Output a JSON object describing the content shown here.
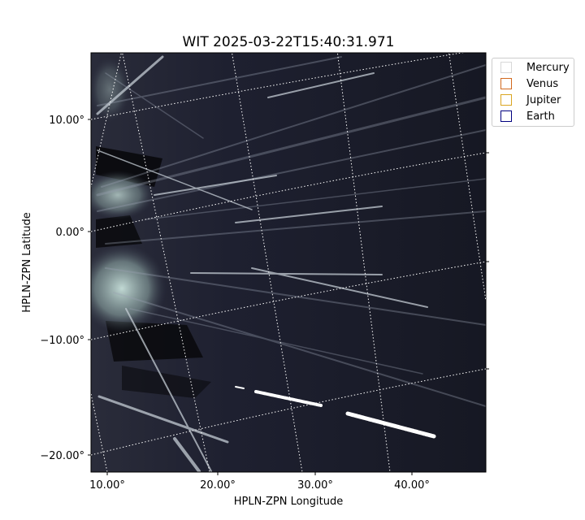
{
  "chart_data": {
    "type": "scatter",
    "title": "WIT 2025-03-22T15:40:31.971",
    "xlabel": "HPLN-ZPN Longitude",
    "ylabel": "HPLN-ZPN Latitude",
    "x_ticks": [
      "10.00°",
      "20.00°",
      "30.00°",
      "40.00°"
    ],
    "y_ticks": [
      "10.00°",
      "0.00°",
      "−10.00°",
      "−20.00°"
    ],
    "xlim": [
      8.5,
      47
    ],
    "ylim": [
      -21.5,
      16
    ],
    "grid": true,
    "grid_style": "dotted white coordinate grid",
    "colormap": "bone",
    "legend_placement": "upper-right outside",
    "legend": [
      {
        "name": "Mercury",
        "color": "#d8d8d8"
      },
      {
        "name": "Venus",
        "color": "#d2691e"
      },
      {
        "name": "Jupiter",
        "color": "#daa520"
      },
      {
        "name": "Earth",
        "color": "#000080"
      }
    ]
  }
}
